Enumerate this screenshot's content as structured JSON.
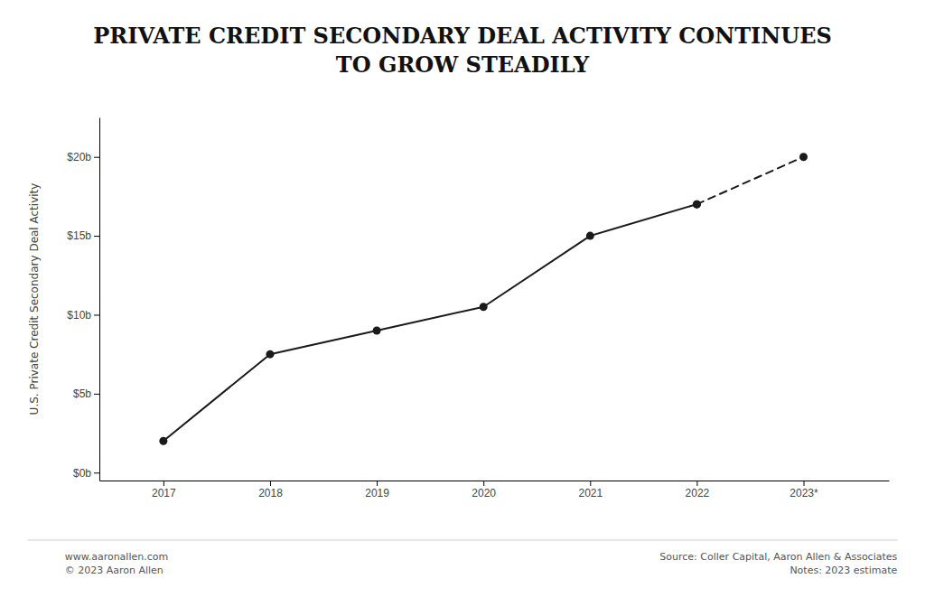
{
  "chart_data": {
    "type": "line",
    "title": "PRIVATE CREDIT SECONDARY DEAL ACTIVITY CONTINUES\nTO GROW STEADILY",
    "y_label": "U.S. Private Credit Secondary Deal Activity",
    "x": [
      2017,
      2018,
      2019,
      2020,
      2021,
      2022,
      2023
    ],
    "series": [
      {
        "color": "#1a1a1a",
        "line_style": "solid",
        "marker": "circle",
        "values": [
          2.0,
          7.5,
          9.0,
          10.5,
          15.0,
          17.0,
          null
        ]
      },
      {
        "color": "#1a1a1a",
        "line_style": "dashed",
        "marker": "circle",
        "values": [
          null,
          null,
          null,
          null,
          null,
          17.0,
          20.0
        ]
      }
    ],
    "xlim": [
      2016.4,
      2023.8
    ],
    "xticks": [
      2017,
      2018,
      2019,
      2020,
      2021,
      2022,
      {
        "value": 2023,
        "label": "2023*"
      }
    ],
    "ylim": [
      -0.5,
      22.5
    ],
    "yticks": [
      {
        "value": 0,
        "label": "$0b"
      },
      {
        "value": 5,
        "label": "$5b"
      },
      {
        "value": 10,
        "label": "$10b"
      },
      {
        "value": 15,
        "label": "$15b"
      },
      {
        "value": 20,
        "label": "$20b"
      }
    ],
    "grid": false,
    "annotations": [
      "www.aaronallen.com\n© 2023 Aaron Allen",
      "Source: Coller Capital, Aaron Allen & Associates\nNotes: 2023 estimate"
    ]
  }
}
